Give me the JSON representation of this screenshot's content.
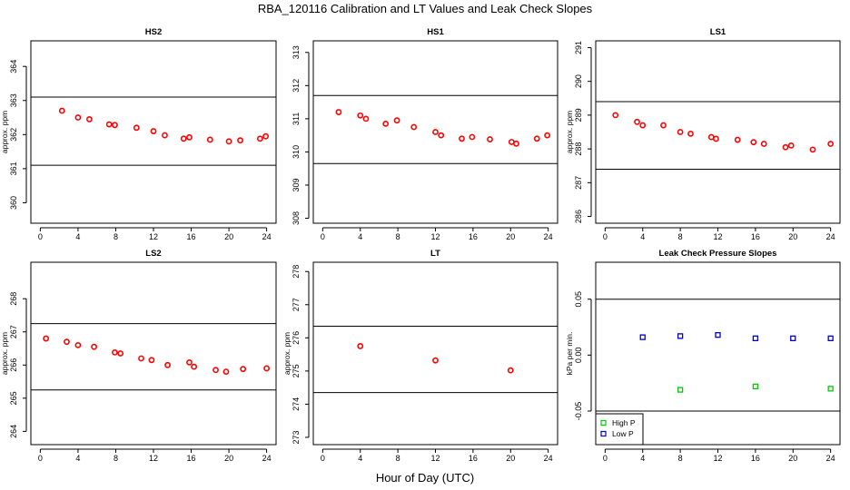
{
  "figure": {
    "title": "RBA_120116  Calibration and LT Values and Leak Check Slopes",
    "xlabel": "Hour of Day (UTC)"
  },
  "colors": {
    "red": "#ff0000",
    "green": "#00cc00",
    "blue": "#0000cc",
    "axis": "#000000"
  },
  "chart_data": [
    {
      "type": "scatter",
      "title": "HS2",
      "ylabel": "approx. ppm",
      "xlim": [
        -1.0,
        25.0
      ],
      "xticks": [
        0,
        4,
        8,
        12,
        16,
        20,
        24
      ],
      "xtick_labels": [
        "0",
        "4",
        "8",
        "12",
        "16",
        "20",
        "24"
      ],
      "ylim": [
        359.4,
        364.75
      ],
      "yticks": [
        360,
        361,
        362,
        363,
        364
      ],
      "ytick_labels": [
        "360",
        "361",
        "362",
        "363",
        "364"
      ],
      "hlines": [
        363.1,
        361.1
      ],
      "series": [
        {
          "name": "values",
          "color": "#ff0000",
          "marker": "circle",
          "x": [
            2.3,
            4.0,
            5.2,
            7.3,
            7.9,
            10.2,
            12.0,
            13.2,
            15.2,
            15.8,
            18.0,
            20.0,
            21.2,
            23.3,
            23.9
          ],
          "y": [
            362.7,
            362.5,
            362.45,
            362.3,
            362.28,
            362.2,
            362.1,
            361.98,
            361.88,
            361.92,
            361.85,
            361.8,
            361.83,
            361.88,
            361.95
          ]
        }
      ]
    },
    {
      "type": "scatter",
      "title": "HS1",
      "ylabel": "",
      "xlim": [
        -1.0,
        25.0
      ],
      "xticks": [
        0,
        4,
        8,
        12,
        16,
        20,
        24
      ],
      "xtick_labels": [
        "0",
        "4",
        "8",
        "12",
        "16",
        "20",
        "24"
      ],
      "ylim": [
        307.85,
        313.35
      ],
      "yticks": [
        308,
        309,
        310,
        311,
        312,
        313
      ],
      "ytick_labels": [
        "308",
        "309",
        "310",
        "311",
        "312",
        "313"
      ],
      "hlines": [
        311.7,
        309.65
      ],
      "series": [
        {
          "name": "values",
          "color": "#ff0000",
          "marker": "circle",
          "x": [
            1.7,
            4.0,
            4.6,
            6.7,
            7.9,
            9.7,
            12.0,
            12.6,
            14.8,
            15.9,
            17.8,
            20.1,
            20.6,
            22.8,
            23.9
          ],
          "y": [
            311.2,
            311.1,
            311.0,
            310.85,
            310.95,
            310.75,
            310.6,
            310.5,
            310.4,
            310.45,
            310.38,
            310.3,
            310.25,
            310.4,
            310.5
          ]
        }
      ]
    },
    {
      "type": "scatter",
      "title": "LS1",
      "ylabel": "approx. ppm",
      "xlim": [
        -1.0,
        25.0
      ],
      "xticks": [
        0,
        4,
        8,
        12,
        16,
        20,
        24
      ],
      "xtick_labels": [
        "0",
        "4",
        "8",
        "12",
        "16",
        "20",
        "24"
      ],
      "ylim": [
        285.8,
        291.2
      ],
      "yticks": [
        286,
        287,
        288,
        289,
        290,
        291
      ],
      "ytick_labels": [
        "286",
        "287",
        "288",
        "289",
        "290",
        "291"
      ],
      "hlines": [
        289.4,
        287.4
      ],
      "series": [
        {
          "name": "values",
          "color": "#ff0000",
          "marker": "circle",
          "x": [
            1.1,
            3.4,
            4.0,
            6.2,
            8.0,
            9.1,
            11.3,
            11.8,
            14.1,
            15.8,
            16.9,
            19.2,
            19.8,
            22.1,
            24.0
          ],
          "y": [
            289.0,
            288.8,
            288.7,
            288.7,
            288.5,
            288.45,
            288.35,
            288.3,
            288.27,
            288.2,
            288.15,
            288.05,
            288.1,
            287.98,
            288.15
          ]
        }
      ]
    },
    {
      "type": "scatter",
      "title": "LS2",
      "ylabel": "approx. ppm",
      "xlim": [
        -1.0,
        25.0
      ],
      "xticks": [
        0,
        4,
        8,
        12,
        16,
        20,
        24
      ],
      "xtick_labels": [
        "0",
        "4",
        "8",
        "12",
        "16",
        "20",
        "24"
      ],
      "ylim": [
        263.6,
        269.1
      ],
      "yticks": [
        264,
        265,
        266,
        267,
        268
      ],
      "ytick_labels": [
        "264",
        "265",
        "266",
        "267",
        "268"
      ],
      "hlines": [
        267.25,
        265.25
      ],
      "series": [
        {
          "name": "values",
          "color": "#ff0000",
          "marker": "circle",
          "x": [
            0.6,
            2.8,
            4.0,
            5.7,
            7.9,
            8.5,
            10.7,
            11.8,
            13.5,
            15.8,
            16.3,
            18.6,
            19.7,
            21.5,
            24.0
          ],
          "y": [
            266.8,
            266.7,
            266.6,
            266.55,
            266.38,
            266.35,
            266.2,
            266.15,
            266.0,
            266.08,
            265.95,
            265.85,
            265.8,
            265.88,
            265.9
          ]
        }
      ]
    },
    {
      "type": "scatter",
      "title": "LT",
      "ylabel": "approx. ppm",
      "xlim": [
        -1.0,
        25.0
      ],
      "xticks": [
        0,
        4,
        8,
        12,
        16,
        20,
        24
      ],
      "xtick_labels": [
        "0",
        "4",
        "8",
        "12",
        "16",
        "20",
        "24"
      ],
      "ylim": [
        272.78,
        278.28
      ],
      "yticks": [
        273,
        274,
        275,
        276,
        277,
        278
      ],
      "ytick_labels": [
        "273",
        "274",
        "275",
        "276",
        "277",
        "278"
      ],
      "hlines": [
        276.35,
        274.35
      ],
      "series": [
        {
          "name": "values",
          "color": "#ff0000",
          "marker": "circle",
          "x": [
            4.0,
            12.0,
            20.0
          ],
          "y": [
            275.75,
            275.32,
            275.02
          ]
        }
      ]
    },
    {
      "type": "scatter",
      "title": "Leak Check Pressure Slopes",
      "ylabel": "kPa per min.",
      "xlim": [
        -1.0,
        25.0
      ],
      "xticks": [
        0,
        4,
        8,
        12,
        16,
        20,
        24
      ],
      "xtick_labels": [
        "0",
        "4",
        "8",
        "12",
        "16",
        "20",
        "24"
      ],
      "ylim": [
        -0.08,
        0.083
      ],
      "yticks": [
        -0.05,
        0.0,
        0.05
      ],
      "ytick_labels": [
        "-0.05",
        "0.00",
        "0.05"
      ],
      "hlines": [
        0.05,
        -0.05
      ],
      "legend": {
        "position": "bottom-left",
        "entries": [
          "High P",
          "Low P"
        ]
      },
      "series": [
        {
          "name": "High P",
          "color": "#00cc00",
          "marker": "square",
          "x": [
            8.0,
            16.0,
            24.0
          ],
          "y": [
            -0.031,
            -0.028,
            -0.03
          ]
        },
        {
          "name": "Low P",
          "color": "#0000cc",
          "marker": "square",
          "x": [
            4.0,
            8.0,
            12.0,
            16.0,
            20.0,
            24.0
          ],
          "y": [
            0.016,
            0.017,
            0.018,
            0.015,
            0.015,
            0.015
          ]
        }
      ]
    }
  ]
}
